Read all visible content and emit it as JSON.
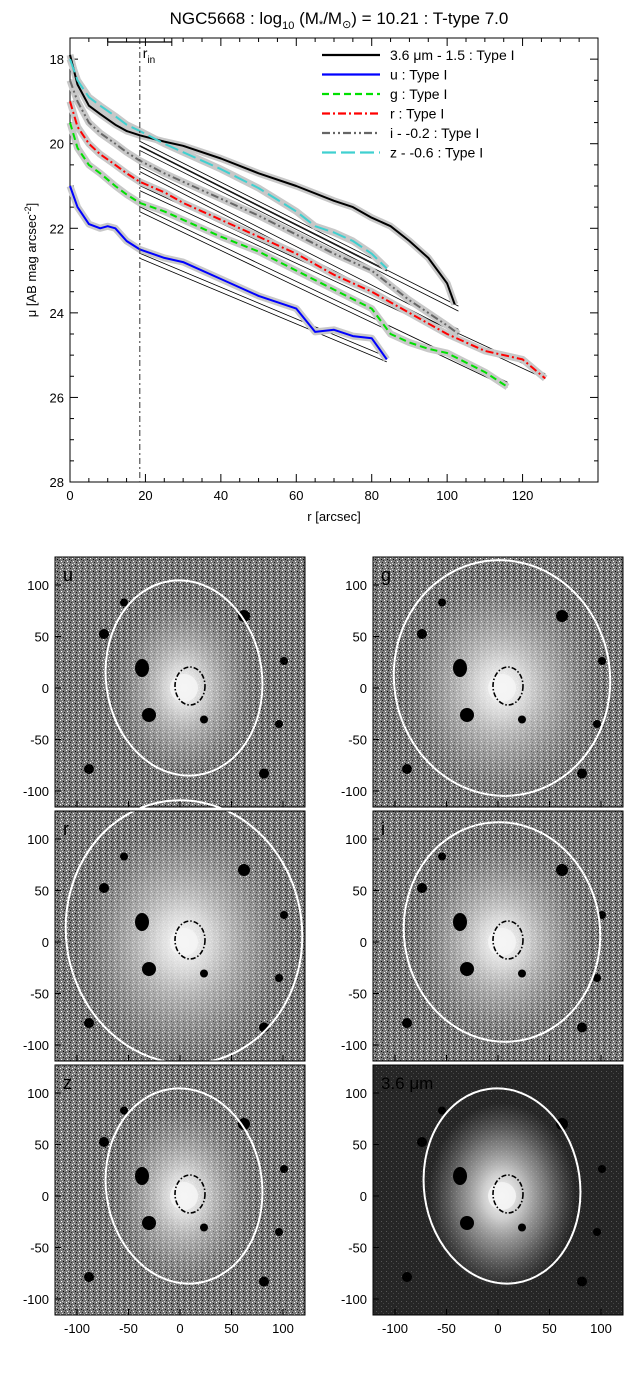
{
  "title": {
    "prefix": "NGC5668 : log",
    "sub": "10",
    "frac": " (M",
    "star": "*",
    "slash": "/M",
    "sun": "⊙",
    "suffix": ") = 10.21 : T-type 7.0"
  },
  "chart_data": {
    "type": "line",
    "xlabel": "r [arcsec]",
    "ylabel_main": "μ [AB mag arcsec",
    "ylabel_sup": "-2",
    "ylabel_end": "]",
    "xlim": [
      0,
      140
    ],
    "ylim": [
      28,
      17.5
    ],
    "x_ticks": [
      0,
      20,
      40,
      60,
      80,
      100,
      120
    ],
    "y_ticks": [
      18,
      20,
      22,
      24,
      26,
      28
    ],
    "r_in": 18.5,
    "r_in_label": "r",
    "r_in_sub": "in",
    "r_in_err": [
      10,
      27
    ],
    "series": [
      {
        "name": "3.6 μm - 1.5 : Type I",
        "color": "#000000",
        "dash": "",
        "x": [
          0,
          2,
          5,
          8,
          12,
          15,
          18.5,
          25,
          30,
          40,
          50,
          60,
          70,
          75,
          80,
          85,
          90,
          95,
          100,
          102
        ],
        "y": [
          17.9,
          18.6,
          19.1,
          19.3,
          19.55,
          19.7,
          19.8,
          19.95,
          20.05,
          20.35,
          20.7,
          21.0,
          21.35,
          21.5,
          21.75,
          21.95,
          22.3,
          22.7,
          23.3,
          23.8
        ],
        "fit": {
          "x": [
            18.5,
            103
          ],
          "y": [
            20.1,
            23.9
          ]
        }
      },
      {
        "name": "u : Type I",
        "color": "#0000ff",
        "dash": "",
        "x": [
          0,
          2,
          5,
          8,
          10,
          12,
          15,
          18.5,
          25,
          30,
          40,
          50,
          60,
          65,
          70,
          75,
          80,
          84
        ],
        "y": [
          21.0,
          21.5,
          21.9,
          22.0,
          21.95,
          22.0,
          22.3,
          22.5,
          22.7,
          22.8,
          23.2,
          23.6,
          23.9,
          24.45,
          24.4,
          24.55,
          24.6,
          25.1
        ],
        "fit": {
          "x": [
            18.5,
            84
          ],
          "y": [
            22.65,
            25.1
          ]
        }
      },
      {
        "name": "g : Type I",
        "color": "#00e000",
        "dash": "7,4",
        "x": [
          0,
          2,
          5,
          8,
          12,
          15,
          18.5,
          25,
          30,
          40,
          50,
          60,
          70,
          80,
          85,
          90,
          95,
          100,
          110,
          116
        ],
        "y": [
          19.5,
          20.1,
          20.5,
          20.7,
          21.0,
          21.2,
          21.4,
          21.6,
          21.8,
          22.2,
          22.55,
          23.0,
          23.45,
          23.9,
          24.5,
          24.7,
          24.85,
          24.95,
          25.4,
          25.75
        ],
        "fit": {
          "x": [
            18.5,
            116
          ],
          "y": [
            21.55,
            25.7
          ]
        }
      },
      {
        "name": "r : Type I",
        "color": "#ff0000",
        "dash": "8,3,2,3",
        "x": [
          0,
          2,
          5,
          8,
          12,
          15,
          18.5,
          25,
          30,
          40,
          50,
          60,
          70,
          80,
          90,
          100,
          110,
          120,
          126
        ],
        "y": [
          19.0,
          19.6,
          20.0,
          20.25,
          20.5,
          20.7,
          20.9,
          21.15,
          21.4,
          21.8,
          22.2,
          22.6,
          23.1,
          23.5,
          24.0,
          24.5,
          24.9,
          25.1,
          25.55
        ],
        "fit": {
          "x": [
            18.5,
            126
          ],
          "y": [
            21.05,
            25.5
          ]
        }
      },
      {
        "name": "i - -0.2 : Type I",
        "color": "#666666",
        "dash": "8,3,2,3,2,3",
        "x": [
          0,
          2,
          5,
          8,
          12,
          15,
          18.5,
          25,
          30,
          40,
          50,
          60,
          70,
          80,
          90,
          100,
          103
        ],
        "y": [
          18.5,
          19.0,
          19.5,
          19.75,
          20.0,
          20.2,
          20.4,
          20.7,
          20.9,
          21.3,
          21.7,
          22.15,
          22.6,
          23.0,
          23.7,
          24.3,
          24.5
        ],
        "fit": {
          "x": [
            18.5,
            103
          ],
          "y": [
            20.6,
            24.45
          ]
        }
      },
      {
        "name": "z - -0.6 : Type I",
        "color": "#40d0d0",
        "dash": "14,5",
        "x": [
          0,
          2,
          5,
          8,
          12,
          15,
          18.5,
          25,
          30,
          40,
          50,
          60,
          65,
          70,
          75,
          80,
          84
        ],
        "y": [
          18.0,
          18.5,
          18.9,
          19.1,
          19.35,
          19.55,
          19.7,
          20.0,
          20.2,
          20.6,
          21.05,
          21.6,
          21.95,
          22.1,
          22.3,
          22.6,
          22.95
        ],
        "fit": {
          "x": [
            18.5,
            84
          ],
          "y": [
            20.0,
            22.95
          ]
        }
      }
    ]
  },
  "panels": [
    {
      "label": "u",
      "ell_rx": 78,
      "ell_ry": 98,
      "band": "u"
    },
    {
      "label": "g",
      "ell_rx": 108,
      "ell_ry": 118,
      "band": "g"
    },
    {
      "label": "r",
      "ell_rx": 118,
      "ell_ry": 132,
      "band": "r"
    },
    {
      "label": "i",
      "ell_rx": 98,
      "ell_ry": 110,
      "band": "i"
    },
    {
      "label": "z",
      "ell_rx": 78,
      "ell_ry": 98,
      "band": "z"
    },
    {
      "label": "3.6 μm",
      "ell_rx": 78,
      "ell_ry": 98,
      "band": "ir"
    }
  ],
  "panel_axes": {
    "x_ticks": [
      "-100",
      "-50",
      "0",
      "50",
      "100"
    ],
    "y_ticks": [
      "100",
      "50",
      "0",
      "-50",
      "-100"
    ]
  }
}
